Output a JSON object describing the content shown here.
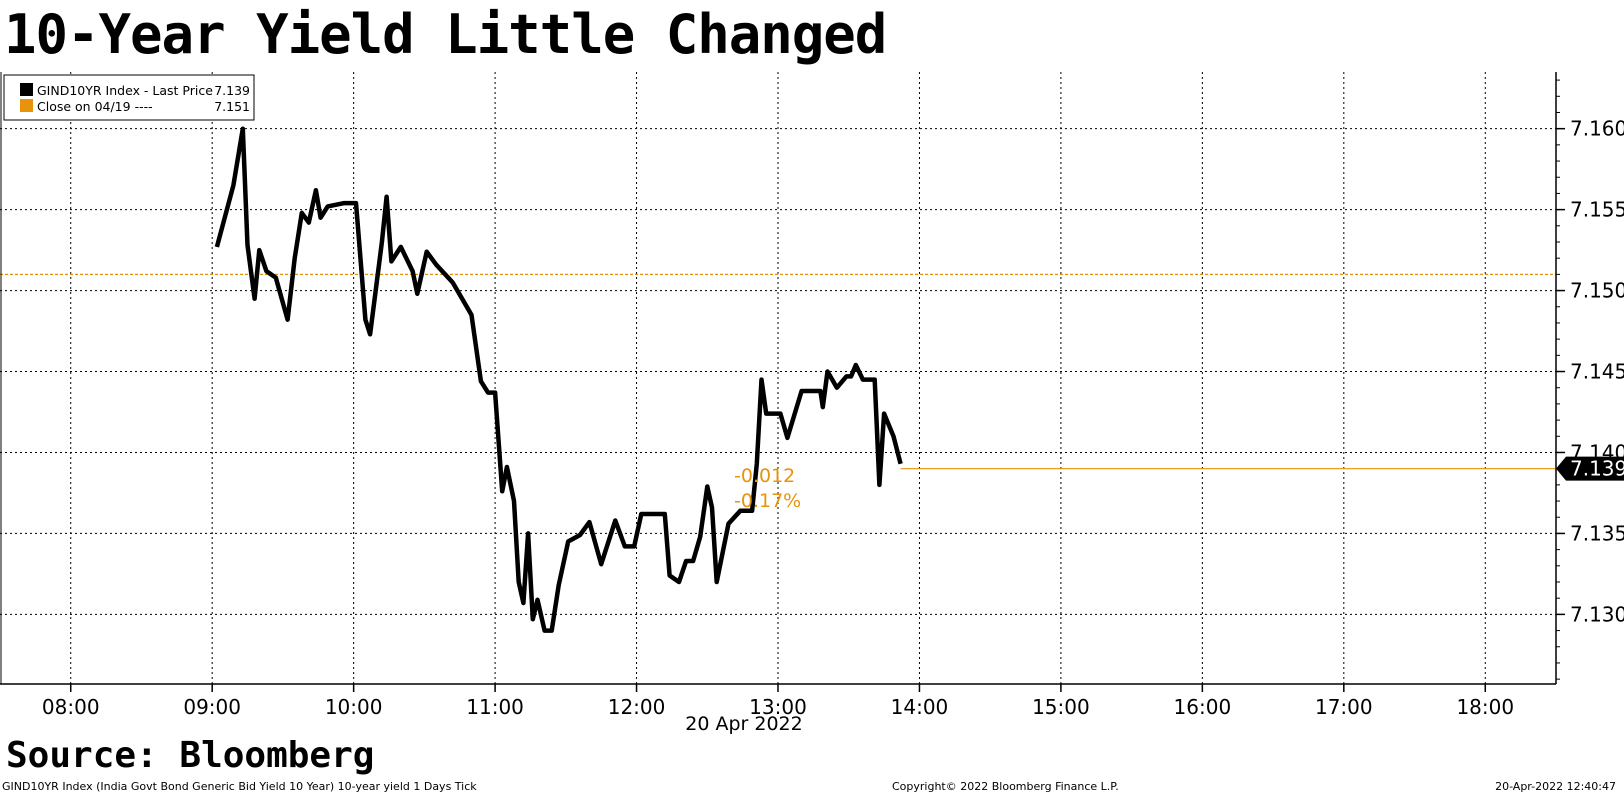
{
  "chart_data": {
    "type": "line",
    "title": "10-Year Yield Little Changed",
    "legend": {
      "placement": "top-left",
      "entries": [
        {
          "label": "GIND10YR Index - Last Price",
          "value": "7.139",
          "color": "#000000"
        },
        {
          "label": "Close on 04/19 ----",
          "value": "7.151",
          "color": "#e8940a"
        }
      ]
    },
    "x_ticks": [
      "08:00",
      "09:00",
      "10:00",
      "11:00",
      "12:00",
      "13:00",
      "14:00",
      "15:00",
      "16:00",
      "17:00",
      "18:00"
    ],
    "x_date_label": "20 Apr 2022",
    "y_ticks": [
      "7.130",
      "7.135",
      "7.140",
      "7.145",
      "7.150",
      "7.155",
      "7.160"
    ],
    "ylim": [
      7.1257,
      7.1635
    ],
    "xlim": [
      "07:30",
      "18:30"
    ],
    "grid": true,
    "series": [
      {
        "name": "GIND10YR Index - Last Price",
        "color": "#000000",
        "points": [
          [
            "09:02",
            7.1527
          ],
          [
            "09:09",
            7.1565
          ],
          [
            "09:13",
            7.16
          ],
          [
            "09:15",
            7.1528
          ],
          [
            "09:18",
            7.1495
          ],
          [
            "09:20",
            7.1525
          ],
          [
            "09:23",
            7.1512
          ],
          [
            "09:27",
            7.1508
          ],
          [
            "09:32",
            7.1482
          ],
          [
            "09:35",
            7.152
          ],
          [
            "09:38",
            7.1548
          ],
          [
            "09:41",
            7.1542
          ],
          [
            "09:44",
            7.1562
          ],
          [
            "09:46",
            7.1545
          ],
          [
            "09:49",
            7.1552
          ],
          [
            "09:56",
            7.1554
          ],
          [
            "10:01",
            7.1554
          ],
          [
            "10:05",
            7.1482
          ],
          [
            "10:07",
            7.1473
          ],
          [
            "10:12",
            7.153
          ],
          [
            "10:14",
            7.1558
          ],
          [
            "10:16",
            7.1518
          ],
          [
            "10:20",
            7.1527
          ],
          [
            "10:25",
            7.1512
          ],
          [
            "10:27",
            7.1498
          ],
          [
            "10:31",
            7.1524
          ],
          [
            "10:35",
            7.1516
          ],
          [
            "10:42",
            7.1505
          ],
          [
            "10:50",
            7.1485
          ],
          [
            "10:54",
            7.1444
          ],
          [
            "10:57",
            7.1437
          ],
          [
            "11:00",
            7.1437
          ],
          [
            "11:03",
            7.1376
          ],
          [
            "11:05",
            7.1391
          ],
          [
            "11:08",
            7.137
          ],
          [
            "11:10",
            7.132
          ],
          [
            "11:12",
            7.1307
          ],
          [
            "11:14",
            7.135
          ],
          [
            "11:16",
            7.1297
          ],
          [
            "11:18",
            7.1309
          ],
          [
            "11:21",
            7.129
          ],
          [
            "11:24",
            7.129
          ],
          [
            "11:27",
            7.1318
          ],
          [
            "11:31",
            7.1345
          ],
          [
            "11:36",
            7.1349
          ],
          [
            "11:40",
            7.1357
          ],
          [
            "11:45",
            7.1331
          ],
          [
            "11:51",
            7.1358
          ],
          [
            "11:55",
            7.1342
          ],
          [
            "11:59",
            7.1342
          ],
          [
            "12:02",
            7.1362
          ],
          [
            "12:12",
            7.1362
          ],
          [
            "12:14",
            7.1324
          ],
          [
            "12:18",
            7.132
          ],
          [
            "12:21",
            7.1333
          ],
          [
            "12:24",
            7.1333
          ],
          [
            "12:27",
            7.1348
          ],
          [
            "12:30",
            7.1379
          ],
          [
            "12:32",
            7.1366
          ],
          [
            "12:34",
            7.132
          ],
          [
            "12:39",
            7.1356
          ],
          [
            "12:44",
            7.1364
          ],
          [
            "12:49",
            7.1364
          ],
          [
            "12:51",
            7.1393
          ],
          [
            "12:53",
            7.1445
          ],
          [
            "12:55",
            7.1424
          ],
          [
            "13:01",
            7.1424
          ],
          [
            "13:04",
            7.1409
          ],
          [
            "13:10",
            7.1438
          ],
          [
            "13:18",
            7.1438
          ],
          [
            "13:19",
            7.1428
          ],
          [
            "13:21",
            7.145
          ],
          [
            "13:25",
            7.144
          ],
          [
            "13:29",
            7.1447
          ],
          [
            "13:31",
            7.1447
          ],
          [
            "13:33",
            7.1454
          ],
          [
            "13:36",
            7.1445
          ],
          [
            "13:41",
            7.1445
          ],
          [
            "13:43",
            7.138
          ],
          [
            "13:45",
            7.1424
          ],
          [
            "13:49",
            7.141
          ],
          [
            "13:52",
            7.1393
          ]
        ]
      },
      {
        "name": "Close on 04/19",
        "color": "#e8940a",
        "style": "dashed-horizontal",
        "value": 7.151
      }
    ],
    "last_value": {
      "label": "7.139",
      "value": 7.139,
      "color": "#e8940a"
    },
    "annotations": [
      "-0.012",
      "-0.17%"
    ]
  },
  "source": "Source: Bloomberg",
  "footer": {
    "left": "GIND10YR Index (India Govt Bond Generic Bid Yield 10 Year) 10-year yield 1 Days  Tick",
    "middle": "Copyright© 2022 Bloomberg Finance L.P.",
    "right": "20-Apr-2022 12:40:47"
  }
}
